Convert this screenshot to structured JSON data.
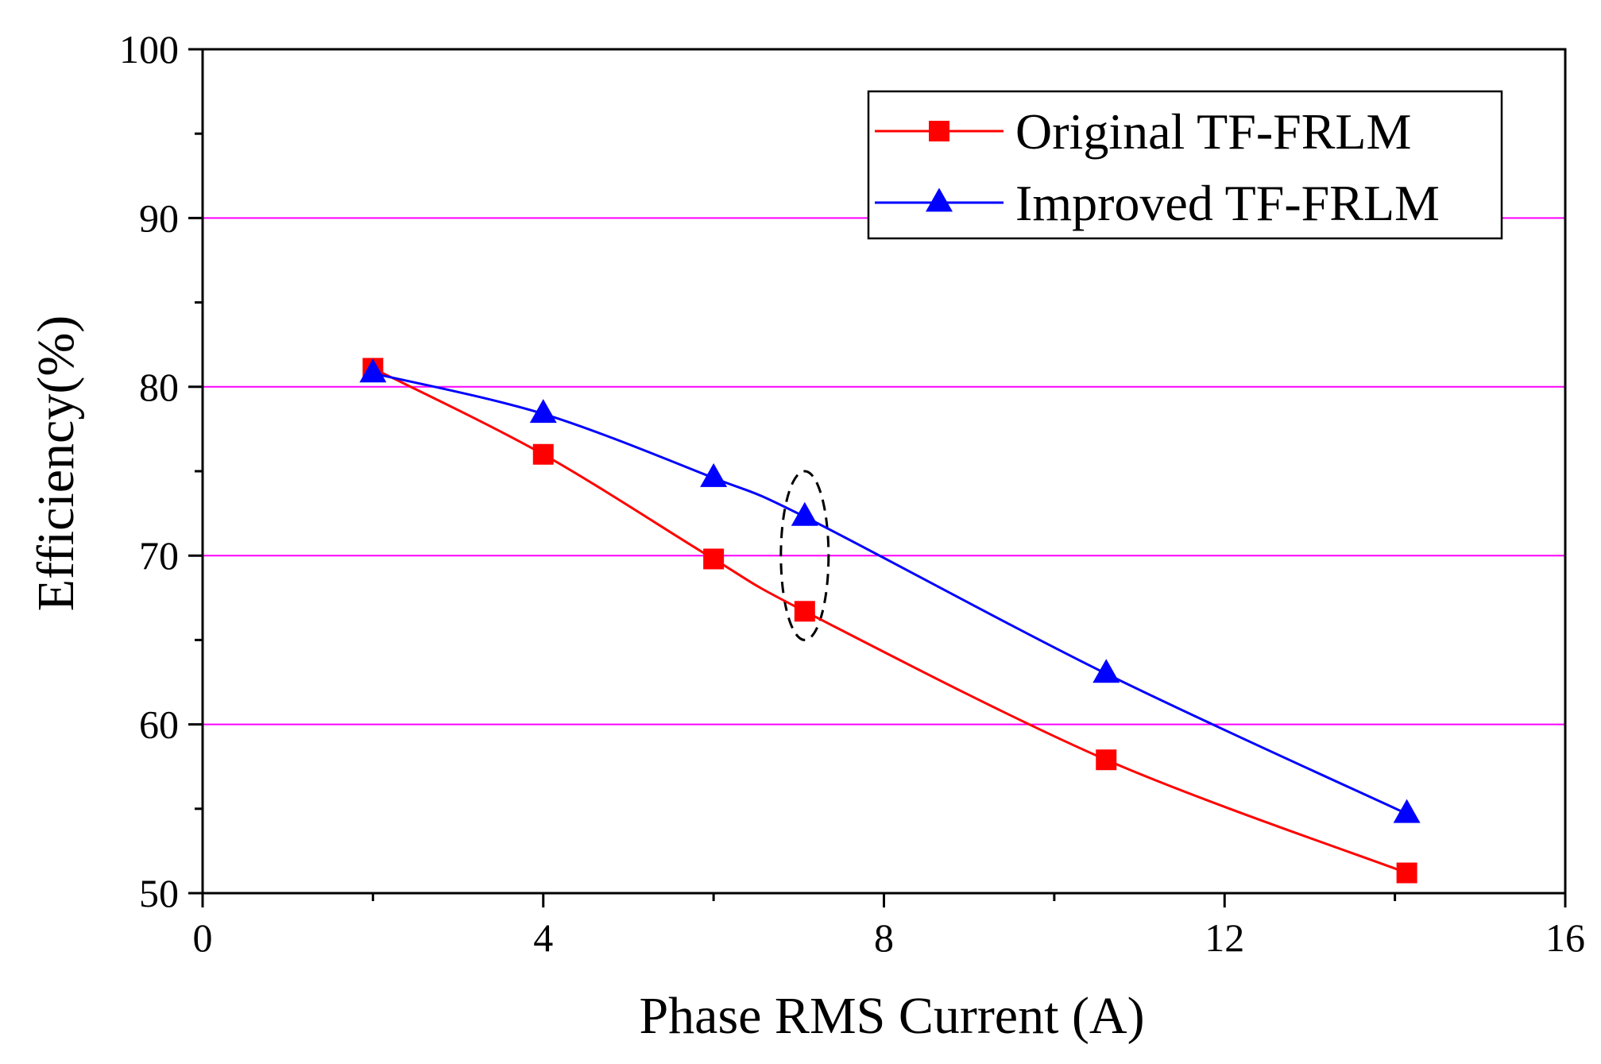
{
  "chart_data": {
    "type": "line",
    "title": "",
    "xlabel": "Phase RMS Current (A)",
    "ylabel": "Efficiency(%)",
    "xlim": [
      0,
      16
    ],
    "ylim": [
      50,
      100
    ],
    "xticks": [
      0,
      4,
      8,
      12,
      16
    ],
    "yticks": [
      50,
      60,
      70,
      80,
      90,
      100
    ],
    "grid": {
      "axis": "y",
      "values": [
        60,
        70,
        80,
        90
      ],
      "color": "#ff00ff"
    },
    "legend_position": "top-right",
    "series": [
      {
        "name": "Original TF-FRLM",
        "color": "#ff0000",
        "marker": "square",
        "x": [
          2.0,
          4.0,
          6.0,
          7.07,
          10.61,
          14.14
        ],
        "y": [
          81.1,
          76.0,
          69.8,
          66.7,
          57.9,
          51.2
        ]
      },
      {
        "name": "Improved TF-FRLM",
        "color": "#0000ff",
        "marker": "triangle",
        "x": [
          2.0,
          4.0,
          6.0,
          7.07,
          10.61,
          14.14
        ],
        "y": [
          80.8,
          78.4,
          74.6,
          72.3,
          63.0,
          54.7
        ]
      }
    ],
    "annotation": {
      "shape": "dashed-ellipse",
      "x": 7.07,
      "y_range": [
        65,
        75
      ]
    }
  }
}
